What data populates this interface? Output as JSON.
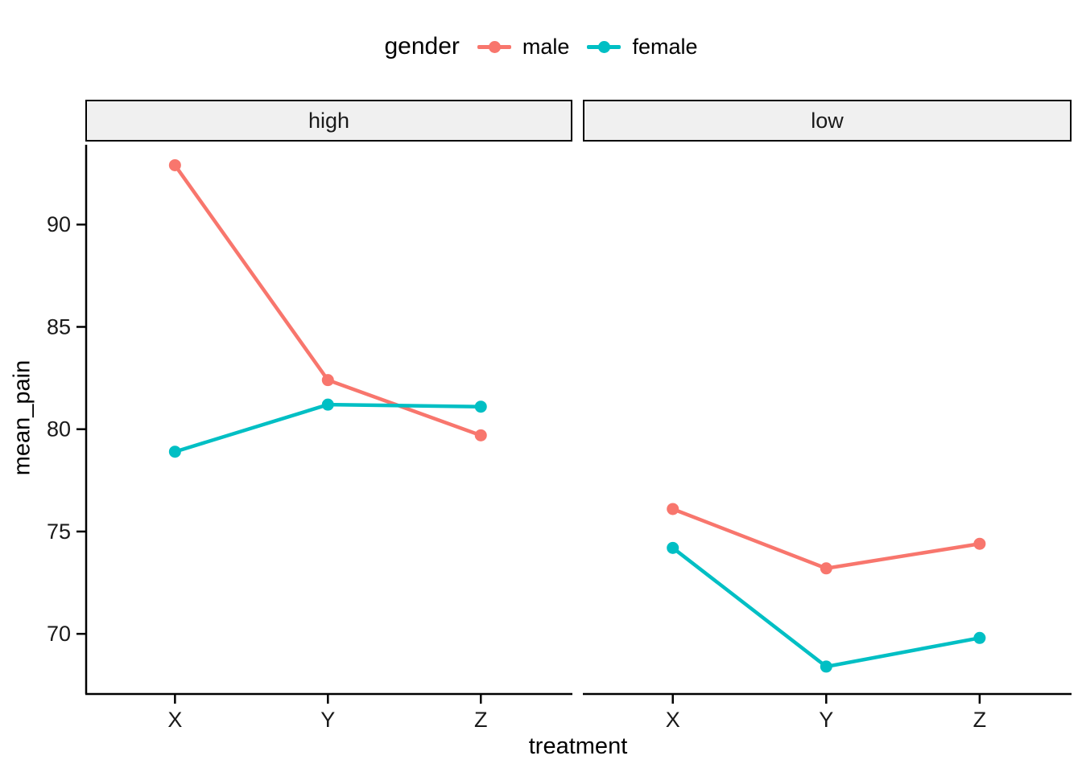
{
  "chart_data": {
    "type": "line",
    "title": "",
    "xlabel": "treatment",
    "ylabel": "mean_pain",
    "categories": [
      "X",
      "Y",
      "Z"
    ],
    "yticks": [
      70,
      75,
      80,
      85,
      90
    ],
    "ylim": [
      67.1,
      93.9
    ],
    "grid": "off",
    "legend": {
      "title": "gender",
      "position": "top",
      "items": [
        {
          "label": "male",
          "color": "#F8766D"
        },
        {
          "label": "female",
          "color": "#00BFC4"
        }
      ]
    },
    "facets": [
      {
        "label": "high",
        "series": [
          {
            "name": "male",
            "color": "#F8766D",
            "values": [
              92.9,
              82.4,
              79.7
            ]
          },
          {
            "name": "female",
            "color": "#00BFC4",
            "values": [
              78.9,
              81.2,
              81.1
            ]
          }
        ]
      },
      {
        "label": "low",
        "series": [
          {
            "name": "male",
            "color": "#F8766D",
            "values": [
              76.1,
              73.2,
              74.4
            ]
          },
          {
            "name": "female",
            "color": "#00BFC4",
            "values": [
              74.2,
              68.4,
              69.8
            ]
          }
        ]
      }
    ],
    "style": {
      "panel_background": "#FFFFFF",
      "strip_background": "#F0F0F0",
      "axis_color": "#000000",
      "axis_text_color": "#1a1a1a"
    }
  }
}
